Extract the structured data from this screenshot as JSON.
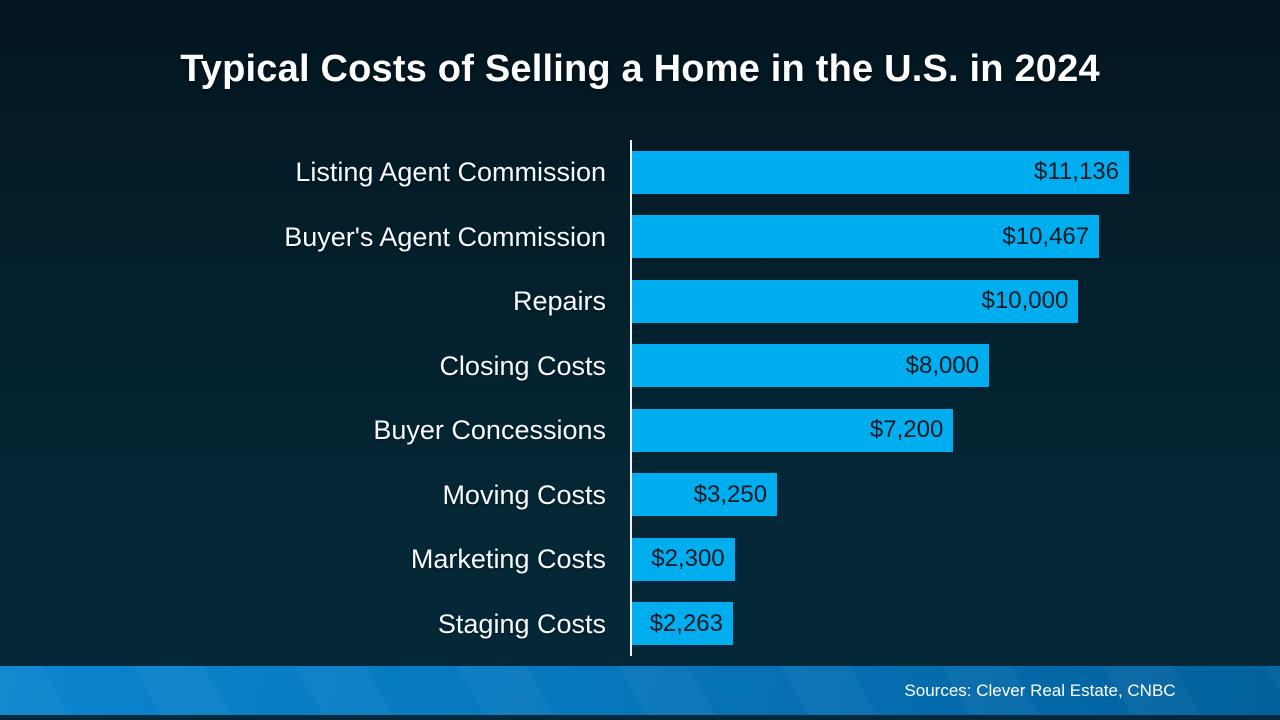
{
  "title": "Typical Costs of Selling a Home in the U.S. in 2024",
  "footer": {
    "source_text": "Sources: Clever Real Estate, CNBC"
  },
  "colors": {
    "bar_fill": "#00aeef",
    "background_top": "#031520",
    "background_bottom": "#05293a",
    "footer_band_left": "#0a85cf",
    "footer_band_right": "#02609c",
    "category_text": "#f7fafc",
    "value_text": "#0a1922",
    "axis_line": "#eef3f6"
  },
  "chart_data": {
    "type": "bar",
    "orientation": "horizontal",
    "title": "Typical Costs of Selling a Home in the U.S. in 2024",
    "categories": [
      "Listing Agent Commission",
      "Buyer's Agent Commission",
      "Repairs",
      "Closing Costs",
      "Buyer Concessions",
      "Moving Costs",
      "Marketing Costs",
      "Staging Costs"
    ],
    "values": [
      11136,
      10467,
      10000,
      8000,
      7200,
      3250,
      2300,
      2263
    ],
    "value_labels": [
      "$11,136",
      "$10,467",
      "$10,000",
      "$8,000",
      "$7,200",
      "$3,250",
      "$2,300",
      "$2,263"
    ],
    "xlabel": "",
    "ylabel": "",
    "xlim": [
      0,
      11136
    ],
    "grid": false,
    "legend": false,
    "value_label_position": "inside-end"
  }
}
